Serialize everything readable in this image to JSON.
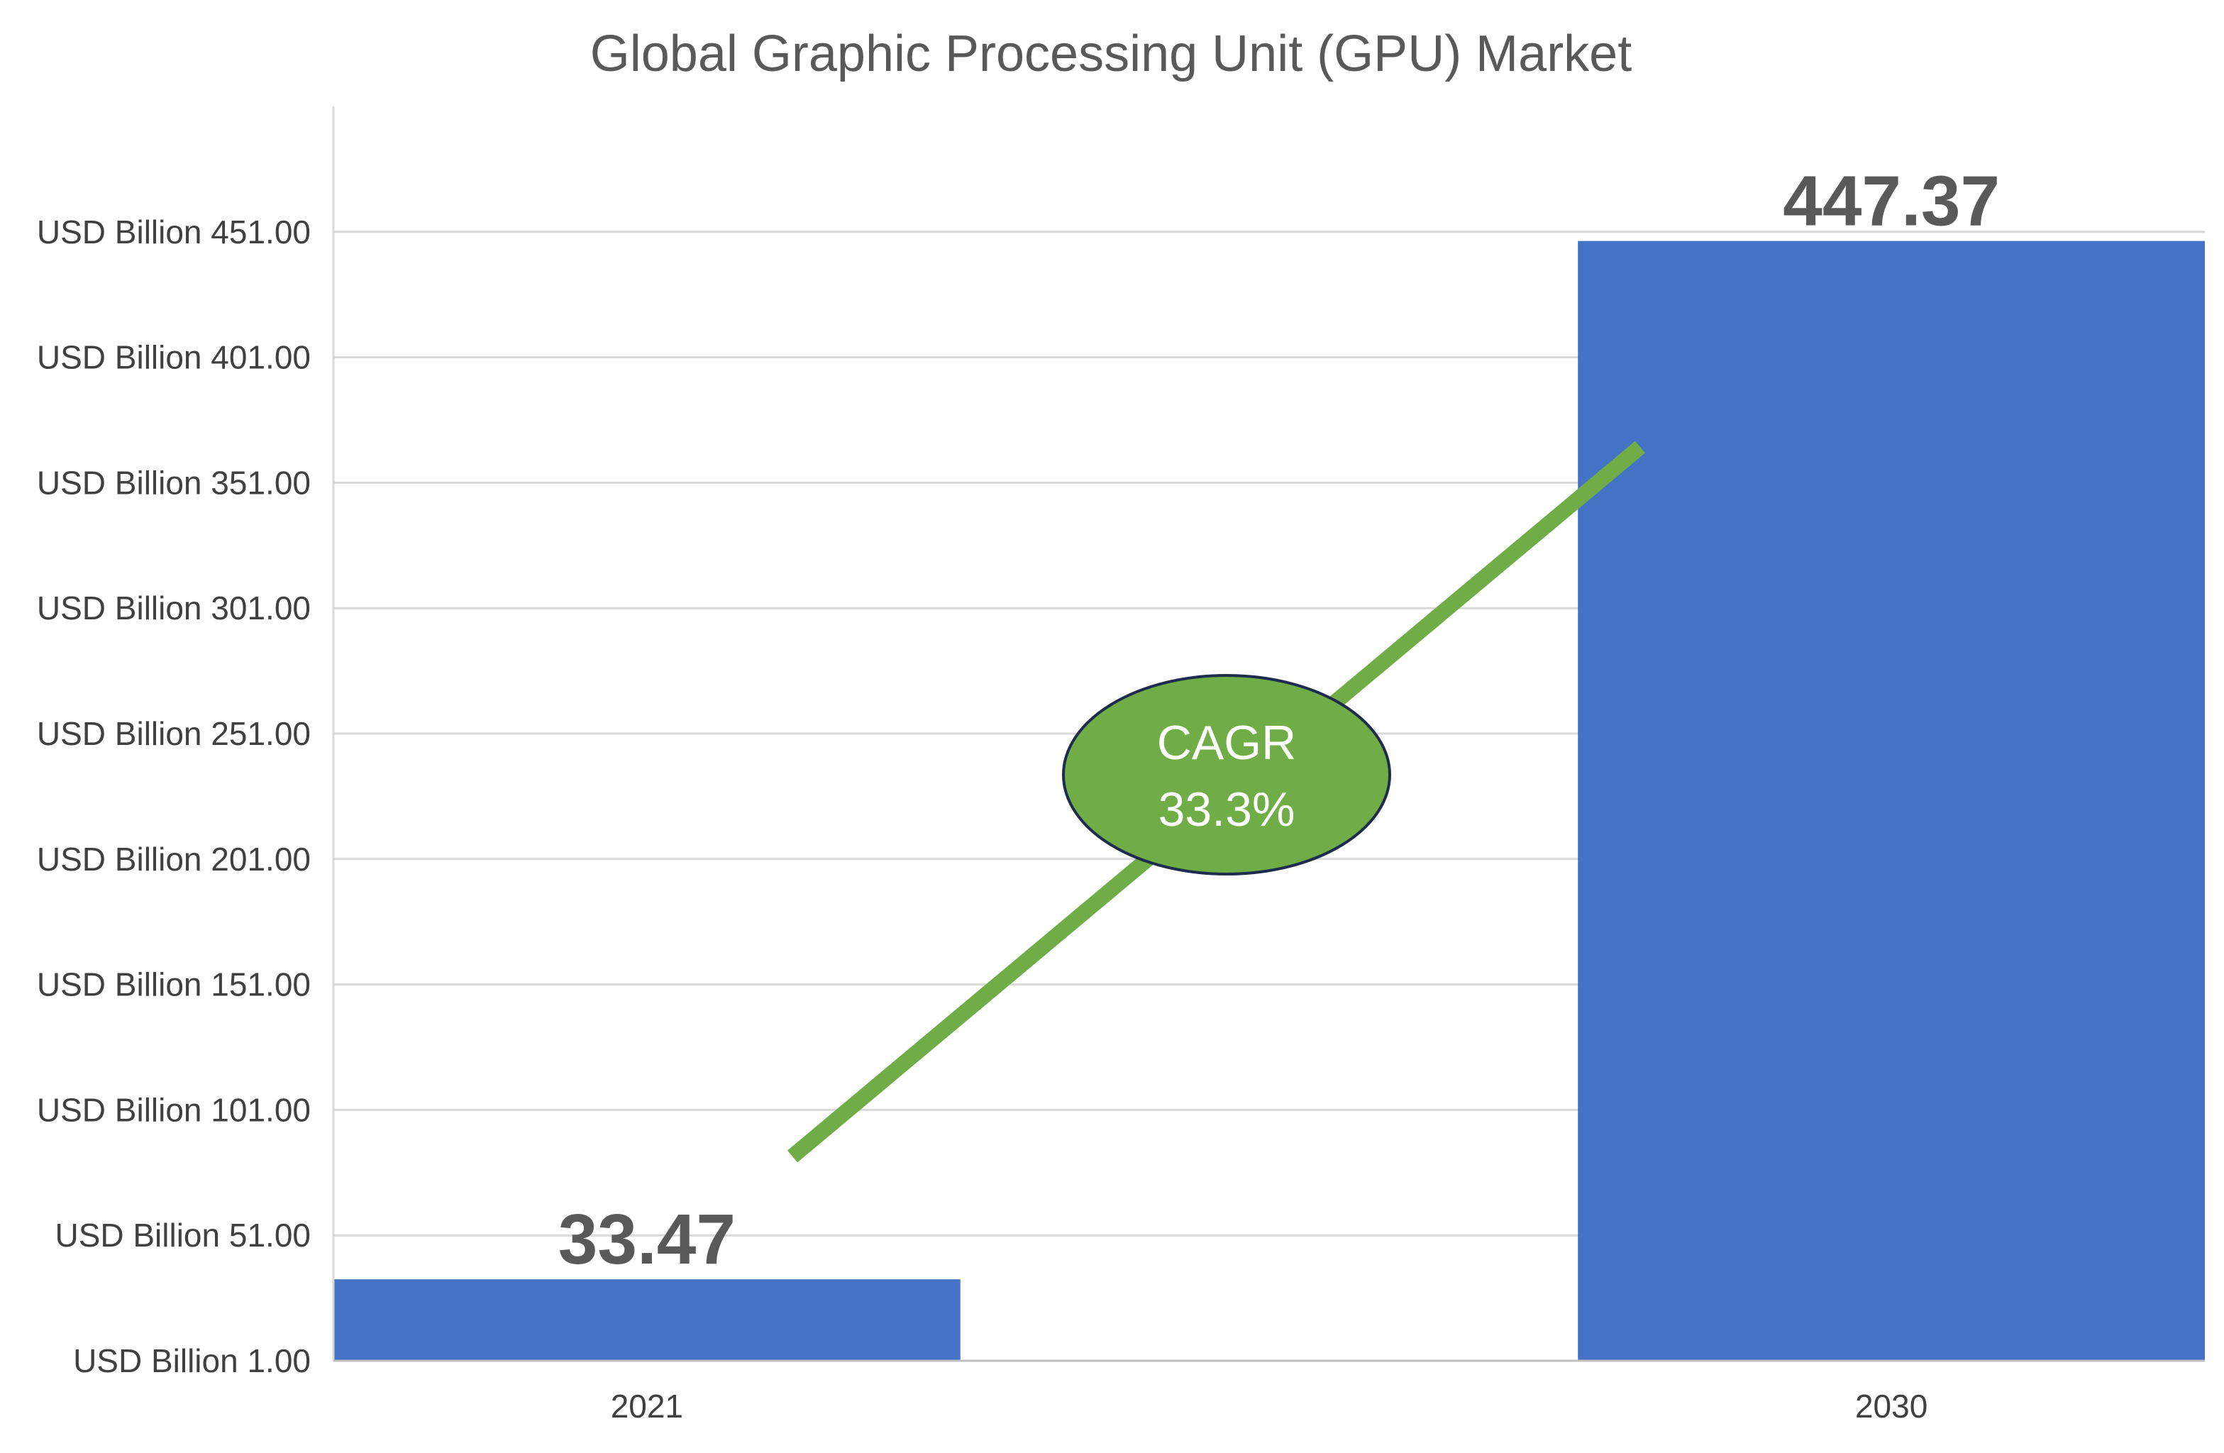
{
  "chart_data": {
    "type": "bar",
    "title": "Global Graphic Processing Unit (GPU) Market",
    "categories": [
      "2021",
      "2030"
    ],
    "values": [
      33.47,
      447.37
    ],
    "data_labels": [
      "33.47",
      "447.37"
    ],
    "yticks": [
      "USD Billion 1.00",
      "USD Billion 51.00",
      "USD Billion 101.00",
      "USD Billion 151.00",
      "USD Billion 201.00",
      "USD Billion 251.00",
      "USD Billion 301.00",
      "USD Billion 351.00",
      "USD Billion 401.00",
      "USD Billion 451.00"
    ],
    "ytick_values": [
      1,
      51,
      101,
      151,
      201,
      251,
      301,
      351,
      401,
      451
    ],
    "ylim": [
      1,
      501
    ],
    "grid": true,
    "bar_color": "#4472C4",
    "annotation": {
      "line1": "CAGR",
      "line2": "33.3%",
      "color": "#70AD47",
      "text_color": "#ffffff",
      "outline_color": "#1F2D4D"
    }
  }
}
